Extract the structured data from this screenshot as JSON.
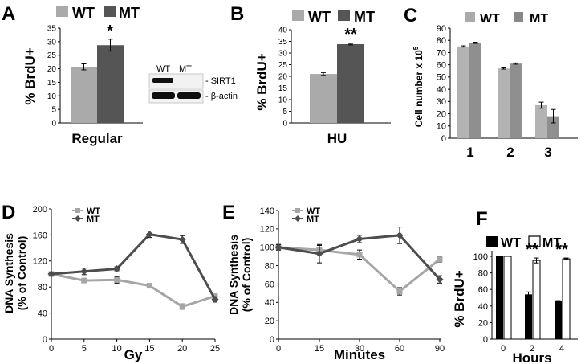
{
  "colors": {
    "wt": "#aaaaaa",
    "mt": "#555555",
    "wt_line": "#a6a6a6",
    "mt_line": "#4d4d4d",
    "white": "#ffffff",
    "black": "#000000"
  },
  "chart_data": [
    {
      "panel": "A",
      "type": "bar",
      "legend": [
        "WT",
        "MT"
      ],
      "categories": [
        "Regular"
      ],
      "series": [
        {
          "name": "WT",
          "values": [
            20.7
          ],
          "errors": [
            1.1
          ]
        },
        {
          "name": "MT",
          "values": [
            28.7
          ],
          "errors": [
            2.2
          ]
        }
      ],
      "ylabel": "% BrdU+",
      "ylim": [
        0,
        35
      ],
      "yticks": [
        "0",
        "5",
        "10",
        "15",
        "20",
        "25",
        "30",
        "35"
      ],
      "significance": "*",
      "blot": {
        "lanes": [
          "WT",
          "MT"
        ],
        "rows": [
          "- SIRT1",
          "- β-actin"
        ]
      }
    },
    {
      "panel": "B",
      "type": "bar",
      "legend": [
        "WT",
        "MT"
      ],
      "categories": [
        "HU"
      ],
      "series": [
        {
          "name": "WT",
          "values": [
            21
          ],
          "errors": [
            0.6
          ]
        },
        {
          "name": "MT",
          "values": [
            33.8
          ],
          "errors": [
            0.3
          ]
        }
      ],
      "ylabel": "% BrdU+",
      "ylim": [
        0,
        40
      ],
      "yticks": [
        "0",
        "5",
        "10",
        "15",
        "20",
        "25",
        "30",
        "35",
        "40"
      ],
      "significance": "**"
    },
    {
      "panel": "C",
      "type": "bar",
      "legend": [
        "WT",
        "MT"
      ],
      "categories": [
        "1",
        "2",
        "3"
      ],
      "series": [
        {
          "name": "WT",
          "values": [
            75,
            57,
            27
          ],
          "errors": [
            0.5,
            0.5,
            2.5
          ]
        },
        {
          "name": "MT",
          "values": [
            78,
            61,
            18
          ],
          "errors": [
            0.5,
            0.5,
            5.5
          ]
        }
      ],
      "ylabel": "Cell number x 10",
      "ylabel_sup": "5",
      "ylim": [
        0,
        90
      ],
      "yticks": [
        "0",
        "10",
        "20",
        "30",
        "40",
        "50",
        "60",
        "70",
        "80",
        "90"
      ]
    },
    {
      "panel": "D",
      "type": "line",
      "legend": [
        "WT",
        "MT"
      ],
      "x": [
        0,
        5,
        10,
        15,
        20,
        25
      ],
      "series": [
        {
          "name": "WT",
          "values": [
            100,
            90,
            91,
            82,
            50,
            66
          ],
          "errors": [
            3,
            3,
            5,
            3,
            4,
            3
          ]
        },
        {
          "name": "MT",
          "values": [
            100,
            104,
            108,
            161,
            153,
            61
          ],
          "errors": [
            3,
            5,
            3,
            5,
            6,
            4
          ]
        }
      ],
      "xlabel": "Gy",
      "ylabel": "DNA Synthesis",
      "ylabel2": "(% of Control)",
      "xlim": [
        0,
        25
      ],
      "ylim": [
        0,
        200
      ],
      "xticks": [
        "0",
        "5",
        "10",
        "15",
        "20",
        "25"
      ],
      "yticks": [
        "0",
        "40",
        "80",
        "120",
        "160",
        "200"
      ]
    },
    {
      "panel": "E",
      "type": "line",
      "legend": [
        "WT",
        "MT"
      ],
      "x": [
        0,
        15,
        30,
        60,
        90
      ],
      "series": [
        {
          "name": "WT",
          "values": [
            100,
            97,
            92,
            52,
            87
          ],
          "errors": [
            3,
            5,
            5,
            4,
            3
          ]
        },
        {
          "name": "MT",
          "values": [
            100,
            93,
            109,
            113,
            65
          ],
          "errors": [
            3,
            10,
            4,
            9,
            4
          ]
        }
      ],
      "xlabel": "Minutes",
      "ylabel": "DNA Synthesis",
      "ylabel2": "(% of Control)",
      "xlim": [
        0,
        90
      ],
      "ylim": [
        0,
        140
      ],
      "xticks": [
        "0",
        "15",
        "30",
        "60",
        "90"
      ],
      "yticks": [
        "0",
        "20",
        "40",
        "60",
        "80",
        "100",
        "120",
        "140"
      ]
    },
    {
      "panel": "F",
      "type": "bar",
      "legend": [
        "WT",
        "MT"
      ],
      "categories": [
        "0",
        "2",
        "4"
      ],
      "series": [
        {
          "name": "WT",
          "values": [
            100,
            54,
            46
          ],
          "errors": [
            0,
            3,
            0.5
          ]
        },
        {
          "name": "MT",
          "values": [
            100,
            95,
            97
          ],
          "errors": [
            0,
            3,
            1
          ]
        }
      ],
      "xlabel": "Hours",
      "ylabel": "% BrdU+",
      "ylim": [
        0,
        120
      ],
      "yticks": [
        "0",
        "20",
        "40",
        "60",
        "80",
        "100"
      ],
      "significance": [
        "",
        "**",
        "**"
      ]
    }
  ]
}
